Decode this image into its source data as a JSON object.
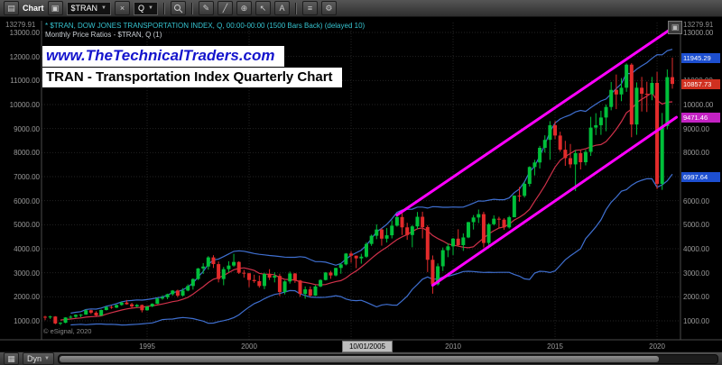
{
  "toolbar": {
    "window_label": "Chart",
    "symbol_value": "$TRAN",
    "interval_value": "Q"
  },
  "header": {
    "line1": "* $TRAN, DOW JONES TRANSPORTATION INDEX, Q, 00:00-00:00 (1500 Bars Back) (delayed 10)",
    "line2": "Monthly Price Ratios - $TRAN, Q (1)"
  },
  "watermark": {
    "url": "www.TheTechnicalTraders.com",
    "caption": "TRAN - Transportation Index Quarterly Chart"
  },
  "axis": {
    "top_label": "13279.91",
    "y_ticks": [
      "13000.00",
      "12000.00",
      "11000.00",
      "10000.00",
      "9000.00",
      "8000.00",
      "7000.00",
      "6000.00",
      "5000.00",
      "4000.00",
      "3000.00",
      "2000.00",
      "1000.00"
    ],
    "x_ticks": [
      {
        "label": "1995",
        "year": 1995
      },
      {
        "label": "2000",
        "year": 2000
      },
      {
        "label": "2005",
        "year": 2005
      },
      {
        "label": "2010",
        "year": 2010
      },
      {
        "label": "2015",
        "year": 2015
      },
      {
        "label": "2020",
        "year": 2020
      }
    ],
    "cursor_label": "10/01/2005",
    "cursor_year": 2005.75
  },
  "price_tags": [
    {
      "label": "11945.29",
      "price": 11945.29,
      "color": "#1d4fd0",
      "name": "upper-band-price-tag"
    },
    {
      "label": "10857.73",
      "price": 10857.73,
      "color": "#d03020",
      "name": "last-price-tag"
    },
    {
      "label": "9471.46",
      "price": 9471.46,
      "color": "#c322c3",
      "name": "trendline-price-tag"
    },
    {
      "label": "6997.64",
      "price": 6997.64,
      "color": "#1d4fd0",
      "name": "lower-band-price-tag"
    }
  ],
  "footer": {
    "copyright": "© eSignal, 2020",
    "dyn_label": "Dyn"
  },
  "chart_data": {
    "type": "candlestick",
    "symbol": "$TRAN",
    "name": "Dow Jones Transportation Index",
    "interval": "Quarterly",
    "x_start_year": 1990,
    "quarters_per_year": 4,
    "price_range": [
      1000,
      13279.91
    ],
    "candles": [
      [
        1170,
        1210,
        1030,
        1150
      ],
      [
        1150,
        1215,
        1080,
        1180
      ],
      [
        1180,
        1195,
        860,
        890
      ],
      [
        890,
        940,
        820,
        920
      ],
      [
        920,
        1150,
        900,
        1140
      ],
      [
        1140,
        1230,
        1090,
        1170
      ],
      [
        1170,
        1270,
        1120,
        1250
      ],
      [
        1250,
        1280,
        1150,
        1260
      ],
      [
        1260,
        1480,
        1250,
        1440
      ],
      [
        1440,
        1460,
        1280,
        1340
      ],
      [
        1340,
        1400,
        1190,
        1220
      ],
      [
        1220,
        1470,
        1200,
        1450
      ],
      [
        1450,
        1600,
        1430,
        1580
      ],
      [
        1580,
        1630,
        1500,
        1550
      ],
      [
        1550,
        1680,
        1530,
        1660
      ],
      [
        1660,
        1790,
        1630,
        1760
      ],
      [
        1760,
        1870,
        1670,
        1690
      ],
      [
        1690,
        1750,
        1530,
        1600
      ],
      [
        1600,
        1700,
        1550,
        1660
      ],
      [
        1660,
        1680,
        1350,
        1440
      ],
      [
        1440,
        1610,
        1420,
        1600
      ],
      [
        1600,
        1730,
        1570,
        1710
      ],
      [
        1710,
        1970,
        1700,
        1930
      ],
      [
        1930,
        2060,
        1880,
        1980
      ],
      [
        1980,
        2130,
        1900,
        2110
      ],
      [
        2110,
        2280,
        2050,
        2260
      ],
      [
        2260,
        2300,
        1980,
        2050
      ],
      [
        2050,
        2360,
        2020,
        2260
      ],
      [
        2260,
        2520,
        2230,
        2450
      ],
      [
        2450,
        2770,
        2300,
        2740
      ],
      [
        2740,
        3200,
        2700,
        3180
      ],
      [
        3180,
        3400,
        2950,
        3260
      ],
      [
        3260,
        3690,
        3130,
        3640
      ],
      [
        3640,
        3730,
        3200,
        3360
      ],
      [
        3360,
        3470,
        2600,
        2740
      ],
      [
        2740,
        3240,
        2480,
        3150
      ],
      [
        3150,
        3480,
        3020,
        3300
      ],
      [
        3300,
        3790,
        3250,
        3450
      ],
      [
        3450,
        3480,
        2950,
        3000
      ],
      [
        3000,
        3120,
        2800,
        2980
      ],
      [
        2980,
        3000,
        2400,
        2700
      ],
      [
        2700,
        2920,
        2580,
        2650
      ],
      [
        2650,
        2890,
        2380,
        2450
      ],
      [
        2450,
        3000,
        2320,
        2950
      ],
      [
        2950,
        3150,
        2700,
        2800
      ],
      [
        2800,
        3020,
        2600,
        2870
      ],
      [
        2870,
        2960,
        2030,
        2200
      ],
      [
        2200,
        2680,
        2100,
        2640
      ],
      [
        2640,
        3050,
        2550,
        2970
      ],
      [
        2970,
        2990,
        2580,
        2680
      ],
      [
        2680,
        2700,
        2000,
        2120
      ],
      [
        2120,
        2430,
        1920,
        2310
      ],
      [
        2310,
        2430,
        1990,
        2050
      ],
      [
        2050,
        2480,
        2040,
        2430
      ],
      [
        2430,
        2730,
        2400,
        2700
      ],
      [
        2700,
        3030,
        2680,
        3010
      ],
      [
        3010,
        3080,
        2750,
        2890
      ],
      [
        2890,
        3210,
        2850,
        3200
      ],
      [
        3200,
        3390,
        2960,
        3350
      ],
      [
        3350,
        3820,
        3310,
        3800
      ],
      [
        3800,
        3900,
        3420,
        3710
      ],
      [
        3710,
        3720,
        3190,
        3600
      ],
      [
        3600,
        3790,
        3380,
        3670
      ],
      [
        3670,
        4270,
        3620,
        4200
      ],
      [
        4200,
        4590,
        4120,
        4540
      ],
      [
        4540,
        5010,
        4400,
        4800
      ],
      [
        4800,
        4850,
        4130,
        4420
      ],
      [
        4420,
        4860,
        4260,
        4560
      ],
      [
        4560,
        5180,
        4430,
        4960
      ],
      [
        4960,
        5460,
        4920,
        5320
      ],
      [
        5320,
        5490,
        4570,
        4890
      ],
      [
        4890,
        5080,
        4370,
        4570
      ],
      [
        4570,
        4980,
        4060,
        4930
      ],
      [
        4930,
        5530,
        4820,
        5330
      ],
      [
        5330,
        5540,
        4430,
        4900
      ],
      [
        4900,
        4980,
        3030,
        3540
      ],
      [
        3540,
        3720,
        2130,
        2520
      ],
      [
        2520,
        3390,
        2470,
        3270
      ],
      [
        3270,
        4050,
        3070,
        3940
      ],
      [
        3940,
        4220,
        3650,
        4100
      ],
      [
        4100,
        4450,
        3740,
        4420
      ],
      [
        4420,
        4810,
        4090,
        4150
      ],
      [
        4150,
        4640,
        3910,
        4470
      ],
      [
        4470,
        5120,
        4440,
        5107
      ],
      [
        5107,
        5400,
        4800,
        5300
      ],
      [
        5300,
        5630,
        5070,
        5440
      ],
      [
        5440,
        5540,
        4050,
        4240
      ],
      [
        4240,
        5070,
        4110,
        5020
      ],
      [
        5020,
        5390,
        4970,
        5250
      ],
      [
        5250,
        5330,
        4850,
        5210
      ],
      [
        5210,
        5270,
        4790,
        4890
      ],
      [
        4890,
        5370,
        4840,
        5310
      ],
      [
        5310,
        6220,
        5310,
        6210
      ],
      [
        6210,
        6570,
        5960,
        6200
      ],
      [
        6200,
        6790,
        6130,
        6700
      ],
      [
        6700,
        7430,
        6590,
        7400
      ],
      [
        7400,
        7700,
        7050,
        7590
      ],
      [
        7590,
        8280,
        7340,
        8200
      ],
      [
        8200,
        8720,
        8000,
        8530
      ],
      [
        8530,
        9310,
        7700,
        9140
      ],
      [
        9140,
        9310,
        8560,
        8710
      ],
      [
        8710,
        8870,
        8040,
        8120
      ],
      [
        8120,
        8490,
        7450,
        7770
      ],
      [
        7770,
        8360,
        7360,
        7510
      ],
      [
        7510,
        8100,
        6400,
        7980
      ],
      [
        7980,
        8100,
        7300,
        7600
      ],
      [
        7600,
        8120,
        7470,
        8030
      ],
      [
        8030,
        9490,
        7860,
        9040
      ],
      [
        9040,
        9640,
        8730,
        9140
      ],
      [
        9140,
        9740,
        8740,
        9460
      ],
      [
        9460,
        10000,
        8890,
        9900
      ],
      [
        9900,
        10940,
        9760,
        10610
      ],
      [
        10610,
        11250,
        9810,
        10420
      ],
      [
        10420,
        11100,
        10140,
        10700
      ],
      [
        10700,
        11710,
        10530,
        11660
      ],
      [
        11660,
        11720,
        8640,
        9170
      ],
      [
        9170,
        10920,
        8740,
        10700
      ],
      [
        10700,
        11150,
        9710,
        10450
      ],
      [
        10450,
        10950,
        9690,
        10430
      ],
      [
        10430,
        11150,
        10180,
        10900
      ],
      [
        10900,
        11360,
        6480,
        6700
      ],
      [
        6700,
        9650,
        6450,
        9110
      ],
      [
        9110,
        11460,
        8970,
        11140
      ],
      [
        11140,
        11950,
        10660,
        10857.73
      ]
    ],
    "overlays": {
      "bollinger": {
        "period": 20,
        "stdev": 2,
        "color": "#3f6fd0"
      },
      "ma": {
        "period": 10,
        "color": "#d0314a"
      }
    },
    "annotations": {
      "channel_color": "#ff00ff",
      "upper_line": {
        "from": [
          69,
          5400
        ],
        "to": [
          123.8,
          13300
        ]
      },
      "lower_line": {
        "from": [
          76,
          2480
        ],
        "to": [
          123.8,
          9471
        ]
      }
    },
    "up_color": "#00c03a",
    "down_color": "#e22b2b"
  }
}
